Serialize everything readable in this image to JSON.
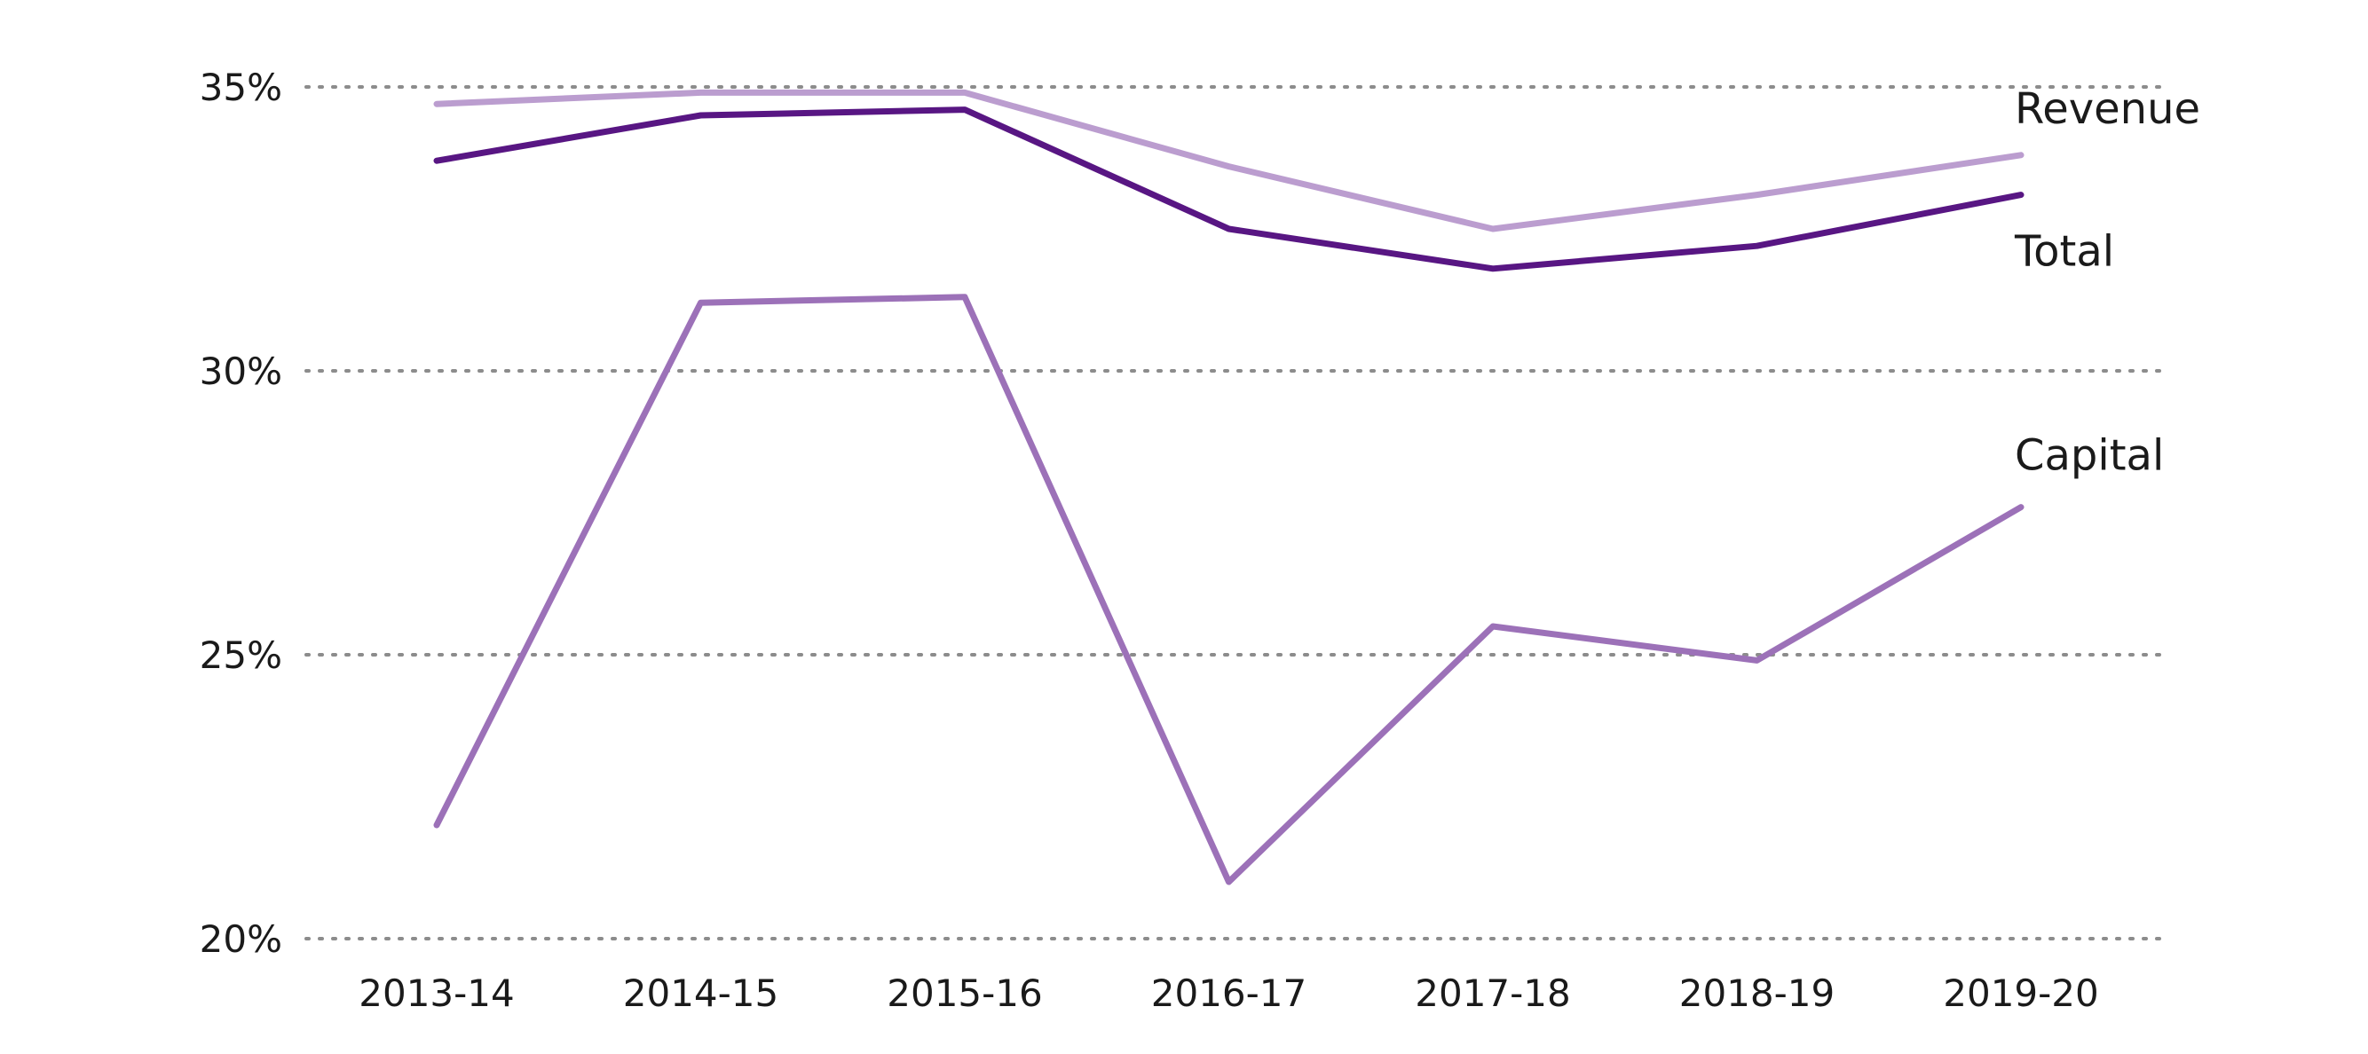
{
  "chart_data": {
    "type": "line",
    "title": "",
    "xlabel": "",
    "ylabel": "",
    "x": [
      "2013-14",
      "2014-15",
      "2015-16",
      "2016-17",
      "2017-18",
      "2018-19",
      "2019-20"
    ],
    "ylim": [
      20,
      35
    ],
    "yticks": [
      20,
      25,
      30,
      35
    ],
    "ytick_labels": [
      "20%",
      "25%",
      "30%",
      "35%"
    ],
    "grid": "horizontal dotted",
    "legend": "direct labels at line ends",
    "series": [
      {
        "name": "Revenue",
        "color": "#bb9dcf",
        "values": [
          34.7,
          34.9,
          34.9,
          33.6,
          32.5,
          33.1,
          33.8
        ]
      },
      {
        "name": "Total",
        "color": "#581683",
        "values": [
          33.7,
          34.5,
          34.6,
          32.5,
          31.8,
          32.2,
          33.1
        ]
      },
      {
        "name": "Capital",
        "color": "#9c71b8",
        "values": [
          22.0,
          31.2,
          31.3,
          21.0,
          25.5,
          24.9,
          27.6
        ]
      }
    ]
  }
}
